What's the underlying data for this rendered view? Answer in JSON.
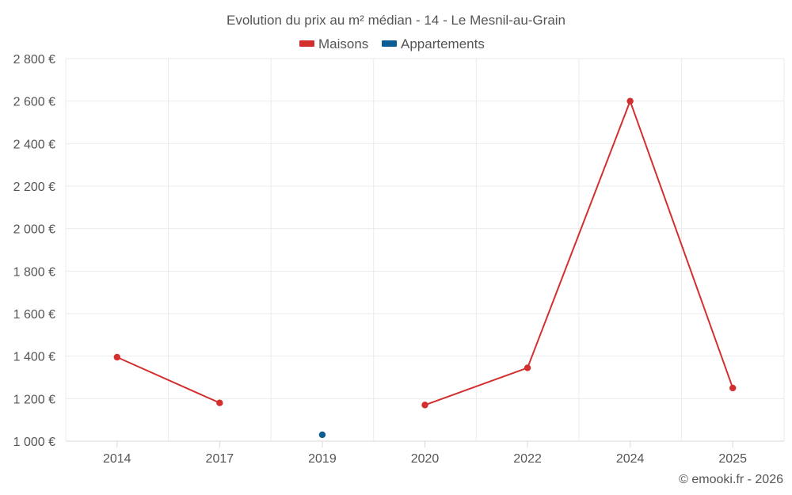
{
  "chart_data": {
    "type": "line",
    "title": "Evolution du prix au m² médian - 14 - Le Mesnil-au-Grain",
    "categories": [
      "2014",
      "2017",
      "2019",
      "2020",
      "2022",
      "2024",
      "2025"
    ],
    "ylim": [
      1000,
      2800
    ],
    "yticks": [
      1000,
      1200,
      1400,
      1600,
      1800,
      2000,
      2200,
      2400,
      2600,
      2800
    ],
    "ytick_labels": [
      "1 000 €",
      "1 200 €",
      "1 400 €",
      "1 600 €",
      "1 800 €",
      "2 000 €",
      "2 200 €",
      "2 400 €",
      "2 600 €",
      "2 800 €"
    ],
    "grid": true,
    "legend_position": "top-center",
    "series": [
      {
        "name": "Maisons",
        "color": "#d32f2f",
        "values": [
          1395,
          1180,
          null,
          1170,
          1345,
          2600,
          1250
        ]
      },
      {
        "name": "Appartements",
        "color": "#0b5d94",
        "values": [
          null,
          null,
          1030,
          null,
          null,
          null,
          null
        ]
      }
    ]
  },
  "credit": "© emooki.fr - 2026"
}
